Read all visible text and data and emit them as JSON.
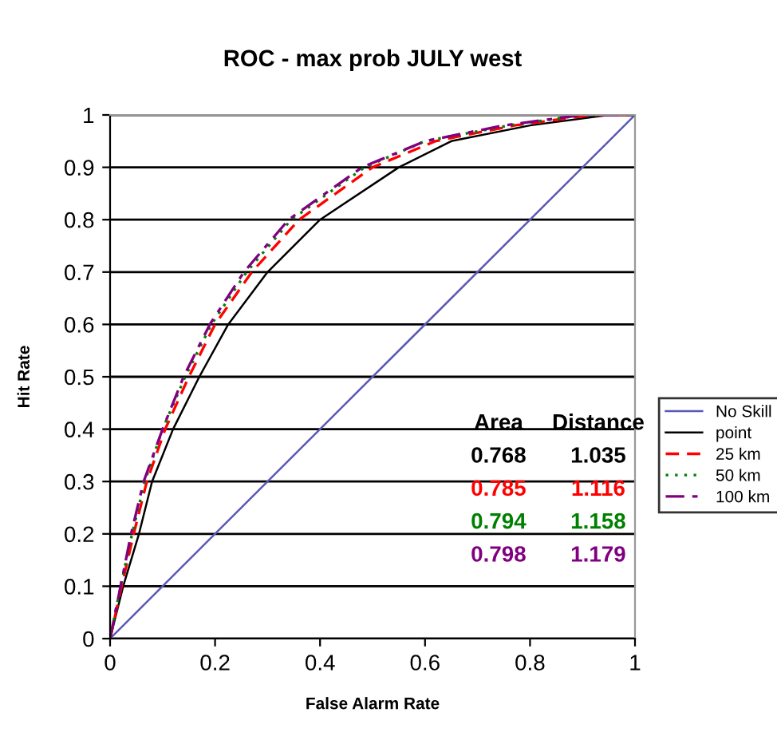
{
  "chart_data": {
    "type": "line",
    "title": "ROC - max prob JULY west",
    "xlabel": "False Alarm Rate",
    "ylabel": "Hit Rate",
    "xlim": [
      0,
      1
    ],
    "ylim": [
      0,
      1
    ],
    "xticks": [
      0,
      0.2,
      0.4,
      0.6,
      0.8,
      1
    ],
    "yticks": [
      0,
      0.1,
      0.2,
      0.3,
      0.4,
      0.5,
      0.6,
      0.7,
      0.8,
      0.9,
      1
    ],
    "grid": "y",
    "legend": "right",
    "marker": "none",
    "series": [
      {
        "name": "No Skill",
        "color": "#5a5ab4",
        "line_style": "solid",
        "x": [
          0,
          1
        ],
        "values": [
          0,
          1
        ]
      },
      {
        "name": "point",
        "color": "#000000",
        "line_style": "solid",
        "x": [
          0,
          0.025,
          0.055,
          0.08,
          0.12,
          0.17,
          0.225,
          0.3,
          0.4,
          0.55,
          0.65,
          0.8,
          0.95,
          1
        ],
        "values": [
          0,
          0.1,
          0.2,
          0.3,
          0.4,
          0.5,
          0.6,
          0.7,
          0.8,
          0.9,
          0.95,
          0.98,
          1,
          1
        ]
      },
      {
        "name": "25 km",
        "color": "#ff0000",
        "line_style": "dashed",
        "x": [
          0,
          0.022,
          0.045,
          0.07,
          0.105,
          0.15,
          0.2,
          0.27,
          0.36,
          0.5,
          0.62,
          0.77,
          0.92,
          1
        ],
        "values": [
          0,
          0.1,
          0.2,
          0.3,
          0.4,
          0.5,
          0.6,
          0.7,
          0.8,
          0.9,
          0.95,
          0.98,
          1,
          1
        ]
      },
      {
        "name": "50 km",
        "color": "#008000",
        "line_style": "dotted",
        "x": [
          0,
          0.02,
          0.042,
          0.066,
          0.1,
          0.143,
          0.193,
          0.26,
          0.345,
          0.485,
          0.6,
          0.76,
          0.9,
          1
        ],
        "values": [
          0,
          0.1,
          0.2,
          0.3,
          0.4,
          0.5,
          0.6,
          0.7,
          0.8,
          0.9,
          0.95,
          0.98,
          1,
          1
        ]
      },
      {
        "name": "100 km",
        "color": "#800080",
        "line_style": "dashdot",
        "x": [
          0,
          0.02,
          0.04,
          0.064,
          0.1,
          0.14,
          0.19,
          0.255,
          0.34,
          0.48,
          0.6,
          0.75,
          0.9,
          1
        ],
        "values": [
          0,
          0.1,
          0.2,
          0.3,
          0.4,
          0.5,
          0.6,
          0.7,
          0.8,
          0.9,
          0.95,
          0.98,
          1,
          1
        ]
      }
    ],
    "annotations": [
      "Area",
      "Distance",
      "0.768",
      "1.035",
      "0.785",
      "1.116",
      "0.794",
      "1.158",
      "0.798",
      "1.179"
    ]
  }
}
